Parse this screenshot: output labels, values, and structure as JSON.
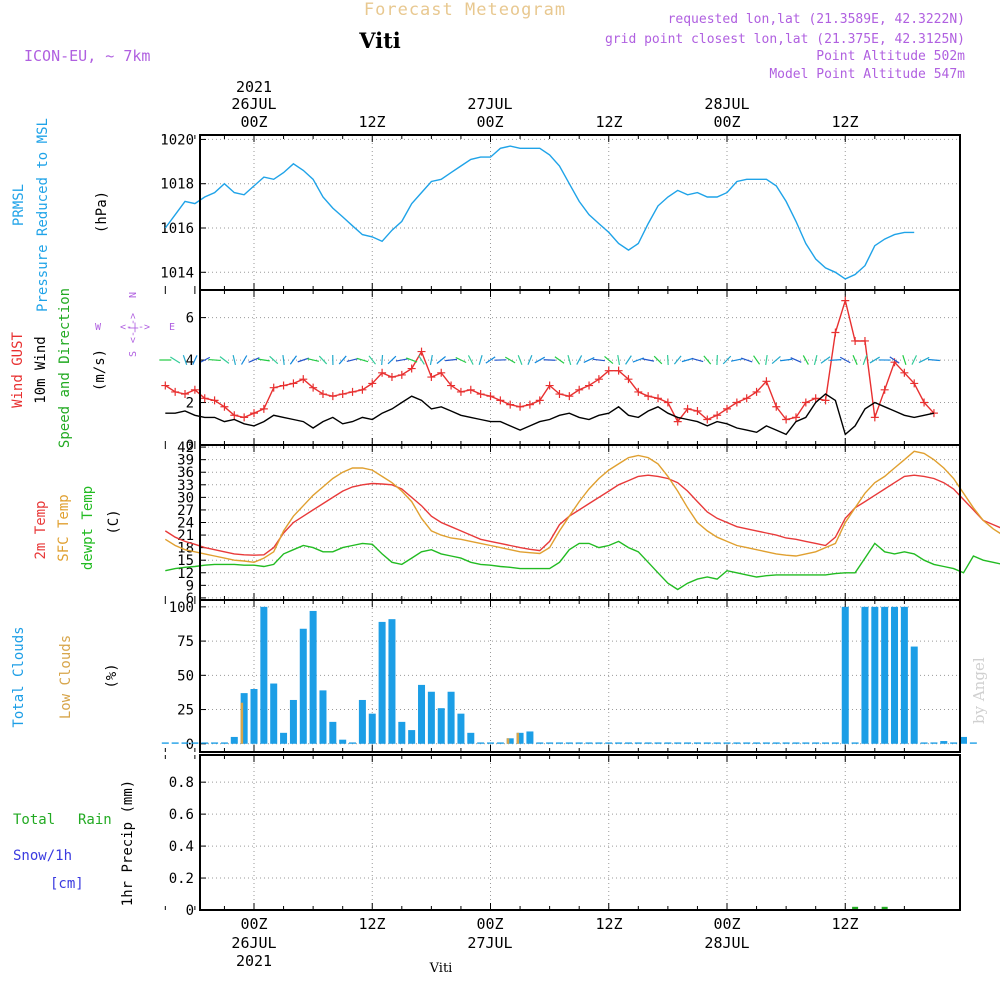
{
  "header": {
    "app_title": "Forecast Meteogram",
    "station": "Viti",
    "model": "ICON-EU, ~ 7km",
    "requested": "requested lon,lat (21.3589E, 42.3222N)",
    "closest": "grid point closest lon,lat (21.375E, 42.3125N)",
    "point_alt": "Point Altitude 502m",
    "model_alt": "Model Point Altitude 547m",
    "footer_station": "Viti",
    "credit": "by Angel"
  },
  "time_axis": {
    "top_year": "2021",
    "top_date_labels": [
      "26JUL",
      "27JUL",
      "28JUL"
    ],
    "hour_labels": [
      "00Z",
      "12Z",
      "00Z",
      "12Z",
      "00Z",
      "12Z"
    ],
    "bottom_date_labels": [
      "26JUL",
      "27JUL",
      "28JUL"
    ],
    "bottom_year": "2021"
  },
  "panels": {
    "pressure": {
      "label1": "PRMSL",
      "label2": "Pressure Reduced to MSL",
      "unit": "(hPa)"
    },
    "wind": {
      "label_gust": "Wind GUST",
      "label_wind1": "10m Wind",
      "label_wind2": "Speed and Direction",
      "unit": "(m/s)",
      "compass_n": "N",
      "compass_w": "W",
      "compass_e": "E",
      "compass_s": "S"
    },
    "temp": {
      "label1": "2m Temp",
      "label2": "SFC Temp",
      "label3": "dewpt Temp",
      "unit": "(C)"
    },
    "clouds": {
      "label1": "Total Clouds",
      "label2": "Low Clouds",
      "unit": "(%)"
    },
    "precip": {
      "label_rain1": "Total",
      "label_rain2": "Rain",
      "label_snow": "Snow/1h",
      "label_snow_unit": "[cm]",
      "unit": "1hr Precip (mm)"
    }
  },
  "colors": {
    "pressure": "#1fa3e8",
    "gust": "#e83030",
    "wind": "#000000",
    "t2m": "#e83a3a",
    "tsfc": "#e0a030",
    "dew": "#22bb22",
    "total_clouds": "#1c9ee6",
    "low_clouds": "#d7a54a",
    "rain": "#22aa22",
    "snow": "#3a3ae0",
    "label_purple": "#b060e0",
    "title_gold": "#e8c890"
  },
  "chart_data": [
    {
      "type": "line",
      "name": "pressure",
      "x_start_hour": -9,
      "x_step_hours": 1,
      "x_range_hours": [
        -9,
        66
      ],
      "ylim": [
        1013.2,
        1020.2
      ],
      "yticks": [
        1014,
        1016,
        1018,
        1020
      ],
      "series": [
        {
          "values": [
            1016.0,
            1016.6,
            1017.2,
            1017.1,
            1017.4,
            1017.6,
            1018.0,
            1017.6,
            1017.5,
            1017.9,
            1018.3,
            1018.2,
            1018.5,
            1018.9,
            1018.6,
            1018.2,
            1017.4,
            1016.9,
            1016.5,
            1016.1,
            1015.7,
            1015.6,
            1015.4,
            1015.9,
            1016.3,
            1017.1,
            1017.6,
            1018.1,
            1018.2,
            1018.5,
            1018.8,
            1019.1,
            1019.2,
            1019.2,
            1019.6,
            1019.7,
            1019.6,
            1019.6,
            1019.6,
            1019.3,
            1018.8,
            1018.0,
            1017.2,
            1016.6,
            1016.2,
            1015.8,
            1015.3,
            1015.0,
            1015.3,
            1016.2,
            1017.0,
            1017.4,
            1017.7,
            1017.5,
            1017.6,
            1017.4,
            1017.4,
            1017.6,
            1018.1,
            1018.2,
            1018.2,
            1018.2,
            1017.9,
            1017.2,
            1016.3,
            1015.3,
            1014.6,
            1014.2,
            1014.0,
            1013.7,
            1013.9,
            1014.3,
            1015.2,
            1015.5,
            1015.7,
            1015.8,
            1015.8
          ]
        }
      ]
    },
    {
      "type": "line",
      "name": "wind",
      "x_start_hour": -9,
      "x_step_hours": 1,
      "ylim": [
        0,
        7.3
      ],
      "yticks": [
        0,
        2,
        4,
        6
      ],
      "series": [
        {
          "name": "Wind GUST",
          "values": [
            2.8,
            2.5,
            2.4,
            2.6,
            2.2,
            2.1,
            1.8,
            1.4,
            1.3,
            1.5,
            1.7,
            2.7,
            2.8,
            2.9,
            3.1,
            2.7,
            2.4,
            2.3,
            2.4,
            2.5,
            2.6,
            2.9,
            3.4,
            3.2,
            3.3,
            3.6,
            4.4,
            3.2,
            3.4,
            2.8,
            2.5,
            2.6,
            2.4,
            2.3,
            2.1,
            1.9,
            1.8,
            1.9,
            2.1,
            2.8,
            2.4,
            2.3,
            2.6,
            2.8,
            3.1,
            3.5,
            3.5,
            3.1,
            2.5,
            2.3,
            2.2,
            2.0,
            1.1,
            1.7,
            1.6,
            1.2,
            1.4,
            1.7,
            2.0,
            2.2,
            2.5,
            3.0,
            1.8,
            1.2,
            1.3,
            2.0,
            2.2,
            2.1,
            5.3,
            6.8,
            4.9,
            4.9,
            1.3,
            2.6,
            3.9,
            3.4,
            2.9,
            2.0,
            1.5
          ]
        },
        {
          "name": "10m Wind",
          "values": [
            1.5,
            1.5,
            1.6,
            1.4,
            1.3,
            1.3,
            1.1,
            1.2,
            1.0,
            0.9,
            1.1,
            1.4,
            1.3,
            1.2,
            1.1,
            0.8,
            1.1,
            1.3,
            1.0,
            1.1,
            1.3,
            1.2,
            1.5,
            1.7,
            2.0,
            2.3,
            2.1,
            1.7,
            1.8,
            1.6,
            1.4,
            1.3,
            1.2,
            1.1,
            1.1,
            0.9,
            0.7,
            0.9,
            1.1,
            1.2,
            1.4,
            1.5,
            1.3,
            1.2,
            1.4,
            1.5,
            1.8,
            1.4,
            1.3,
            1.6,
            1.8,
            1.5,
            1.3,
            1.2,
            1.1,
            0.9,
            1.1,
            1.0,
            0.8,
            0.7,
            0.6,
            0.9,
            0.7,
            0.5,
            1.1,
            1.3,
            2.0,
            2.4,
            2.1,
            0.5,
            0.9,
            1.7,
            2.0,
            1.8,
            1.6,
            1.4,
            1.3,
            1.4,
            1.5
          ]
        }
      ]
    },
    {
      "type": "line",
      "name": "temperature",
      "x_start_hour": -9,
      "x_step_hours": 1,
      "ylim": [
        5.5,
        42.5
      ],
      "yticks": [
        6,
        9,
        12,
        15,
        18,
        21,
        24,
        27,
        30,
        33,
        36,
        39,
        42
      ],
      "series": [
        {
          "name": "2m Temp",
          "values": [
            22.0,
            20.5,
            19.5,
            18.8,
            18.0,
            17.5,
            17.0,
            16.5,
            16.3,
            16.2,
            16.3,
            18.0,
            21.5,
            24.0,
            25.5,
            27.0,
            28.5,
            30.0,
            31.5,
            32.5,
            33.0,
            33.3,
            33.2,
            33.0,
            32.0,
            30.0,
            28.0,
            25.5,
            24.0,
            23.0,
            22.0,
            21.0,
            20.0,
            19.5,
            19.0,
            18.5,
            18.0,
            17.6,
            17.3,
            19.5,
            23.5,
            25.5,
            27.0,
            28.5,
            30.0,
            31.5,
            33.0,
            34.0,
            35.0,
            35.3,
            35.0,
            34.5,
            33.5,
            31.5,
            29.0,
            26.5,
            25.0,
            24.0,
            23.0,
            22.5,
            22.0,
            21.5,
            21.0,
            20.3,
            20.0,
            19.5,
            19.0,
            18.5,
            20.5,
            25.0,
            27.5,
            29.0,
            30.5,
            32.0,
            33.5,
            35.0,
            35.3,
            35.0,
            34.5,
            33.5,
            32.0,
            29.5,
            27.0,
            24.5,
            23.5,
            22.5,
            21.5
          ]
        },
        {
          "name": "SFC Temp",
          "values": [
            20.0,
            18.5,
            17.5,
            17.0,
            16.5,
            16.0,
            15.5,
            15.0,
            14.8,
            14.5,
            15.5,
            17.0,
            22.0,
            25.5,
            28.0,
            30.5,
            32.5,
            34.5,
            36.0,
            37.0,
            37.0,
            36.5,
            35.0,
            33.5,
            31.5,
            29.0,
            25.0,
            22.0,
            21.0,
            20.3,
            20.0,
            19.5,
            19.0,
            18.5,
            18.0,
            17.5,
            17.0,
            16.8,
            16.6,
            18.0,
            22.0,
            25.5,
            29.0,
            32.0,
            34.5,
            36.5,
            38.0,
            39.5,
            40.0,
            39.5,
            38.0,
            35.0,
            31.5,
            27.5,
            24.0,
            22.0,
            20.5,
            19.5,
            18.5,
            18.0,
            17.5,
            17.0,
            16.5,
            16.2,
            16.0,
            16.5,
            17.0,
            18.0,
            19.0,
            24.0,
            27.5,
            31.0,
            33.5,
            35.0,
            37.0,
            39.0,
            41.0,
            40.5,
            39.0,
            37.0,
            34.5,
            31.0,
            27.5,
            24.5,
            22.5,
            21.0,
            20.0
          ]
        },
        {
          "name": "dewpt Temp",
          "values": [
            12.5,
            13.0,
            13.3,
            13.5,
            13.8,
            14.0,
            14.0,
            14.0,
            13.8,
            13.8,
            13.5,
            14.0,
            16.5,
            17.5,
            18.5,
            18.0,
            17.0,
            17.0,
            18.0,
            18.5,
            19.0,
            18.8,
            16.5,
            14.5,
            14.0,
            15.5,
            17.0,
            17.5,
            16.5,
            16.0,
            15.5,
            14.5,
            14.0,
            13.8,
            13.5,
            13.3,
            13.0,
            13.0,
            13.0,
            13.0,
            14.5,
            17.5,
            19.0,
            19.0,
            18.0,
            18.5,
            19.5,
            18.0,
            17.0,
            14.5,
            12.0,
            9.5,
            8.0,
            9.5,
            10.5,
            11.0,
            10.5,
            12.5,
            12.0,
            11.5,
            11.0,
            11.3,
            11.5,
            11.5,
            11.5,
            11.5,
            11.5,
            11.5,
            11.8,
            12.0,
            12.0,
            15.5,
            19.0,
            17.0,
            16.5,
            17.0,
            16.5,
            15.0,
            14.0,
            13.5,
            13.0,
            12.0,
            16.0,
            15.0,
            14.5,
            14.0,
            13.5
          ]
        }
      ]
    },
    {
      "type": "bar",
      "name": "clouds",
      "x_start_hour": -9,
      "x_step_hours": 1,
      "ylim": [
        -6,
        105
      ],
      "yticks": [
        0,
        25,
        50,
        75,
        100
      ],
      "series": [
        {
          "name": "Total Clouds",
          "values": [
            1,
            1,
            1,
            1,
            1,
            1,
            1,
            5,
            37,
            40,
            100,
            44,
            8,
            32,
            84,
            97,
            39,
            16,
            3,
            1,
            32,
            22,
            89,
            91,
            16,
            10,
            43,
            38,
            26,
            38,
            22,
            8,
            1,
            1,
            1,
            4,
            8,
            9,
            1,
            1,
            1,
            1,
            1,
            1,
            1,
            1,
            1,
            1,
            1,
            1,
            1,
            1,
            1,
            1,
            1,
            1,
            1,
            1,
            1,
            1,
            1,
            1,
            1,
            1,
            1,
            1,
            1,
            1,
            1,
            100,
            1,
            100,
            100,
            100,
            100,
            100,
            71,
            1,
            1,
            2,
            1,
            5,
            1
          ]
        },
        {
          "name": "Low Clouds",
          "values": [
            0,
            0,
            0,
            0,
            0,
            0,
            0,
            0,
            30,
            0,
            0,
            0,
            0,
            0,
            0,
            0,
            0,
            0,
            0,
            0,
            0,
            0,
            0,
            0,
            0,
            0,
            0,
            0,
            0,
            0,
            0,
            0,
            0,
            0,
            0,
            4,
            8,
            0,
            0,
            0,
            0,
            0,
            0,
            0,
            0,
            0,
            0,
            0,
            0,
            0,
            0,
            0,
            0,
            0,
            0,
            0,
            0,
            0,
            0,
            0,
            0,
            0,
            0,
            0,
            0,
            0,
            0,
            0,
            0,
            0,
            0,
            0,
            0,
            0,
            0,
            0,
            0,
            0,
            0,
            0,
            0,
            0,
            0
          ]
        }
      ]
    },
    {
      "type": "bar",
      "name": "precipitation",
      "x_start_hour": -9,
      "x_step_hours": 1,
      "ylim": [
        0,
        0.97
      ],
      "yticks": [
        0,
        0.2,
        0.4,
        0.6,
        0.8
      ],
      "series": [
        {
          "name": "Total Rain",
          "values": [
            0.0,
            0.0,
            0.0,
            0.0,
            0.0,
            0.0,
            0.0,
            0.0,
            0.0,
            0.0,
            0.0,
            0.0,
            0.0,
            0.0,
            0.0,
            0.0,
            0.0,
            0.0,
            0.0,
            0.0,
            0.0,
            0.0,
            0.0,
            0.0,
            0.0,
            0.0,
            0.0,
            0.0,
            0.0,
            0.0,
            0.0,
            0.0,
            0.0,
            0.0,
            0.0,
            0.0,
            0.0,
            0.0,
            0.0,
            0.0,
            0.0,
            0.0,
            0.0,
            0.0,
            0.0,
            0.0,
            0.0,
            0.0,
            0.0,
            0.0,
            0.0,
            0.0,
            0.0,
            0.0,
            0.0,
            0.0,
            0.0,
            0.0,
            0.0,
            0.0,
            0.0,
            0.0,
            0.0,
            0.0,
            0.0,
            0.0,
            0.0,
            0.0,
            0.0,
            0.0,
            0.02,
            0.0,
            0.0,
            0.02,
            0.0,
            0.0,
            0.0,
            0.0,
            0.0,
            0.0
          ]
        },
        {
          "name": "Snow/1h",
          "values": []
        }
      ]
    }
  ]
}
